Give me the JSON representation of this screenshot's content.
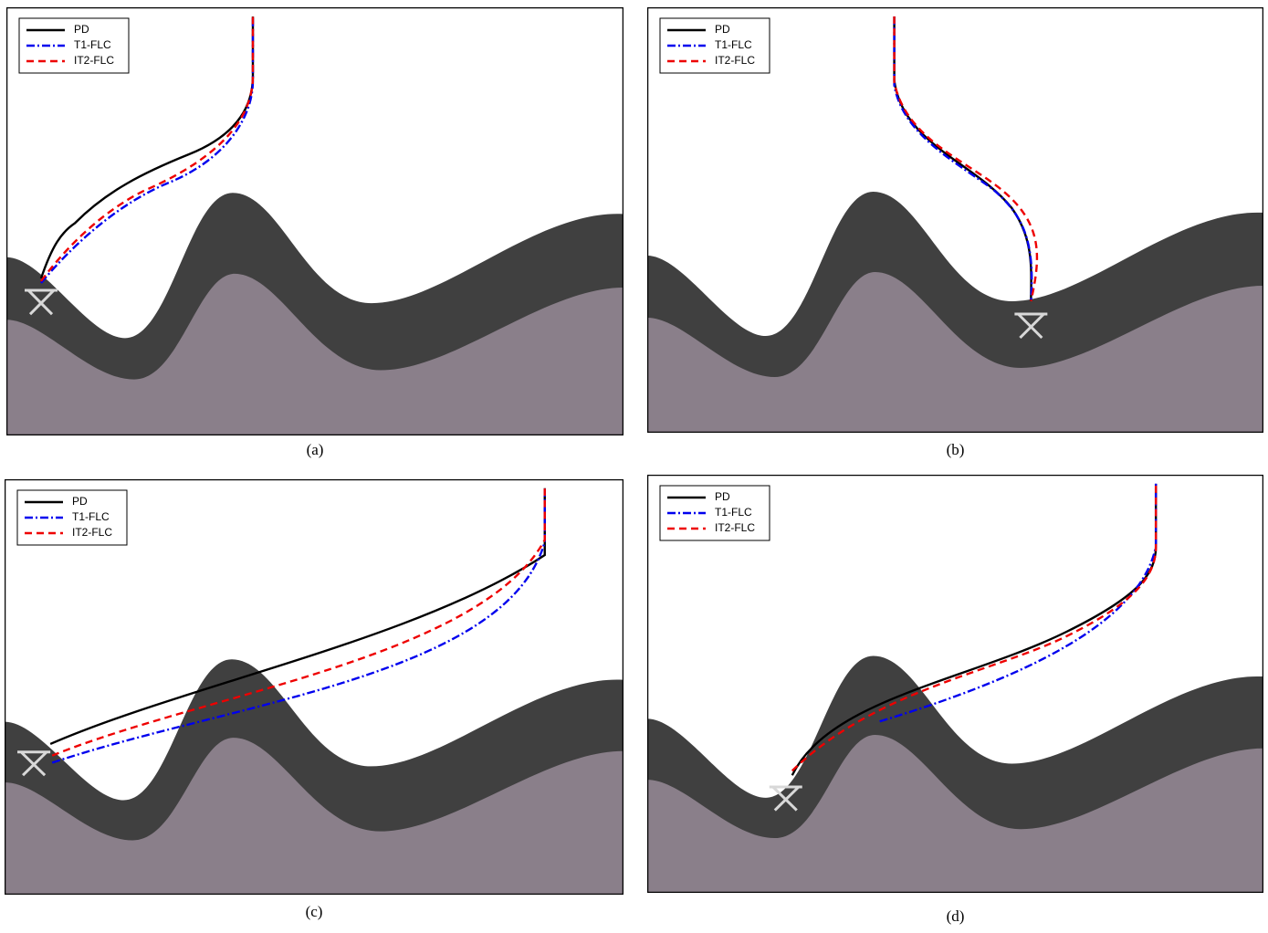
{
  "panels": [
    {
      "caption": "(a)",
      "legend": [
        {
          "name": "PD",
          "color": "#000000",
          "dash": "solid"
        },
        {
          "name": "T1-FLC",
          "color": "#0000ee",
          "dash": "dashdot"
        },
        {
          "name": "IT2-FLC",
          "color": "#ee0000",
          "dash": "dashed"
        }
      ]
    },
    {
      "caption": "(b)",
      "legend": [
        {
          "name": "PD",
          "color": "#000000",
          "dash": "solid"
        },
        {
          "name": "T1-FLC",
          "color": "#0000ee",
          "dash": "dashdot"
        },
        {
          "name": "IT2-FLC",
          "color": "#ee0000",
          "dash": "dashed"
        }
      ]
    },
    {
      "caption": "(c)",
      "legend": [
        {
          "name": "PD",
          "color": "#000000",
          "dash": "solid"
        },
        {
          "name": "T1-FLC",
          "color": "#0000ee",
          "dash": "dashdot"
        },
        {
          "name": "IT2-FLC",
          "color": "#ee0000",
          "dash": "dashed"
        }
      ]
    },
    {
      "caption": "(d)",
      "legend": [
        {
          "name": "PD",
          "color": "#000000",
          "dash": "solid"
        },
        {
          "name": "T1-FLC",
          "color": "#0000ee",
          "dash": "dashdot"
        },
        {
          "name": "IT2-FLC",
          "color": "#ee0000",
          "dash": "dashed"
        }
      ]
    }
  ]
}
